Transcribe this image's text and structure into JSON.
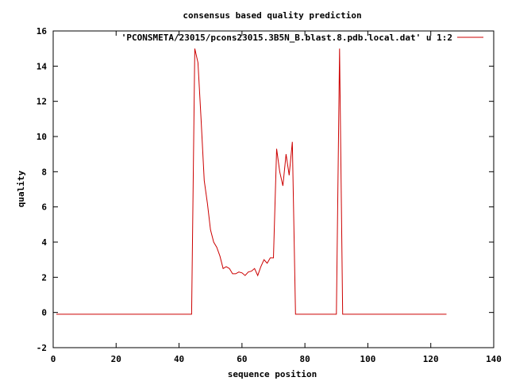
{
  "chart_data": {
    "type": "line",
    "title": "consensus based quality prediction",
    "xlabel": "sequence position",
    "ylabel": "quality",
    "xlim": [
      0,
      140
    ],
    "ylim": [
      -2,
      16
    ],
    "xticks": [
      0,
      20,
      40,
      60,
      80,
      100,
      120,
      140
    ],
    "yticks": [
      -2,
      0,
      2,
      4,
      6,
      8,
      10,
      12,
      14,
      16
    ],
    "grid": false,
    "legend_position": "top-right",
    "series": [
      {
        "name": "'PCONSMETA/23015/pcons23015.3B5N_B.blast.8.pdb.local.dat' u 1:2",
        "color": "#cc0000",
        "x": [
          1,
          44,
          45,
          46,
          47,
          48,
          49,
          50,
          51,
          52,
          53,
          54,
          55,
          56,
          57,
          58,
          59,
          60,
          61,
          62,
          63,
          64,
          65,
          66,
          67,
          68,
          69,
          70,
          71,
          72,
          73,
          74,
          75,
          76,
          77,
          78,
          79,
          89,
          90,
          91,
          92,
          93,
          125
        ],
        "y": [
          -0.1,
          -0.1,
          15.0,
          14.2,
          11.0,
          7.5,
          6.2,
          4.7,
          4.0,
          3.7,
          3.2,
          2.5,
          2.6,
          2.5,
          2.2,
          2.2,
          2.3,
          2.25,
          2.1,
          2.3,
          2.35,
          2.5,
          2.1,
          2.6,
          3.0,
          2.8,
          3.1,
          3.1,
          9.3,
          8.0,
          7.2,
          9.0,
          7.8,
          9.7,
          -0.1,
          -0.1,
          -0.1,
          -0.1,
          -0.1,
          15.0,
          -0.1,
          -0.1,
          -0.1
        ]
      }
    ]
  }
}
